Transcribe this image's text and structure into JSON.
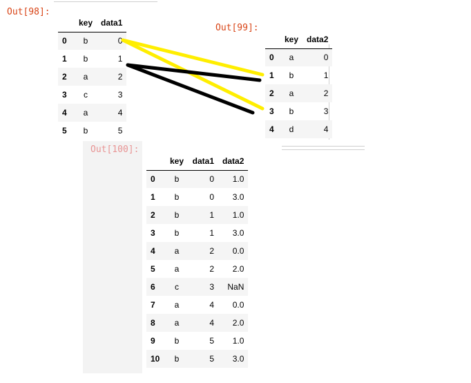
{
  "out98": {
    "prompt": "Out[98]:",
    "columns": [
      "key",
      "data1"
    ],
    "rows": [
      {
        "idx": "0",
        "cells": [
          "b",
          "0"
        ]
      },
      {
        "idx": "1",
        "cells": [
          "b",
          "1"
        ]
      },
      {
        "idx": "2",
        "cells": [
          "a",
          "2"
        ]
      },
      {
        "idx": "3",
        "cells": [
          "c",
          "3"
        ]
      },
      {
        "idx": "4",
        "cells": [
          "a",
          "4"
        ]
      },
      {
        "idx": "5",
        "cells": [
          "b",
          "5"
        ]
      }
    ]
  },
  "out99": {
    "prompt": "Out[99]:",
    "columns": [
      "key",
      "data2"
    ],
    "rows": [
      {
        "idx": "0",
        "cells": [
          "a",
          "0"
        ]
      },
      {
        "idx": "1",
        "cells": [
          "b",
          "1"
        ]
      },
      {
        "idx": "2",
        "cells": [
          "a",
          "2"
        ]
      },
      {
        "idx": "3",
        "cells": [
          "b",
          "3"
        ]
      },
      {
        "idx": "4",
        "cells": [
          "d",
          "4"
        ]
      }
    ]
  },
  "out100": {
    "prompt": "Out[100]:",
    "columns": [
      "key",
      "data1",
      "data2"
    ],
    "rows": [
      {
        "idx": "0",
        "cells": [
          "b",
          "0",
          "1.0"
        ]
      },
      {
        "idx": "1",
        "cells": [
          "b",
          "0",
          "3.0"
        ]
      },
      {
        "idx": "2",
        "cells": [
          "b",
          "1",
          "1.0"
        ]
      },
      {
        "idx": "3",
        "cells": [
          "b",
          "1",
          "3.0"
        ]
      },
      {
        "idx": "4",
        "cells": [
          "a",
          "2",
          "0.0"
        ]
      },
      {
        "idx": "5",
        "cells": [
          "a",
          "2",
          "2.0"
        ]
      },
      {
        "idx": "6",
        "cells": [
          "c",
          "3",
          "NaN"
        ]
      },
      {
        "idx": "7",
        "cells": [
          "a",
          "4",
          "0.0"
        ]
      },
      {
        "idx": "8",
        "cells": [
          "a",
          "4",
          "2.0"
        ]
      },
      {
        "idx": "9",
        "cells": [
          "b",
          "5",
          "1.0"
        ]
      },
      {
        "idx": "10",
        "cells": [
          "b",
          "5",
          "3.0"
        ]
      }
    ]
  },
  "annotation_colors": {
    "yellow": "#ffee00",
    "black": "#000000"
  }
}
